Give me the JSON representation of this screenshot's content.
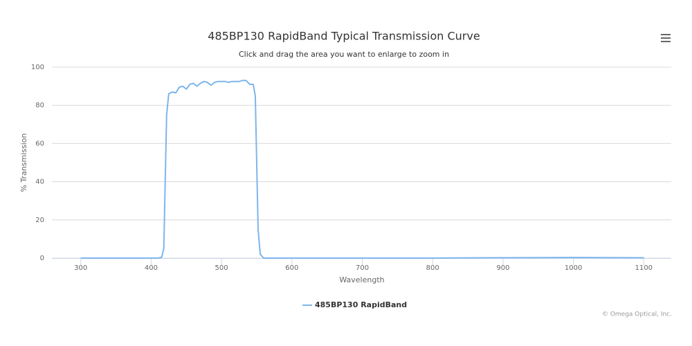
{
  "chart_data": {
    "type": "line",
    "title": "485BP130 RapidBand Typical Transmission Curve",
    "subtitle": "Click and drag the area you want to enlarge to zoom in",
    "x_label": "Wavelength",
    "y_label": "% Transmission",
    "credits": "© Omega Optical, Inc.",
    "xlim": [
      259,
      1139
    ],
    "ylim": [
      0,
      100
    ],
    "xticks": [
      300,
      400,
      500,
      600,
      700,
      800,
      900,
      1000,
      1100
    ],
    "yticks": [
      0,
      20,
      40,
      60,
      80,
      100
    ],
    "grid": true,
    "legend": "bottom",
    "x": [
      300,
      410,
      415,
      418,
      420,
      422,
      425,
      430,
      435,
      440,
      445,
      450,
      455,
      460,
      465,
      470,
      475,
      480,
      485,
      490,
      495,
      500,
      505,
      510,
      515,
      520,
      525,
      530,
      535,
      540,
      545,
      548,
      550,
      552,
      555,
      560,
      600,
      700,
      800,
      880,
      1000,
      1100
    ],
    "series": [
      {
        "name": "485BP130 RapidBand",
        "color": "#7cb5ec",
        "values": [
          0,
          0,
          0.5,
          5,
          40,
          75,
          86,
          87,
          86.5,
          89.5,
          90,
          88.5,
          91,
          91.5,
          90,
          91.5,
          92.5,
          92,
          90.5,
          92,
          92.5,
          92.5,
          92.5,
          92,
          92.5,
          92.5,
          92.5,
          93,
          93,
          91,
          91,
          85,
          50,
          15,
          2,
          0,
          0,
          0,
          0,
          0.2,
          0.3,
          0.2
        ]
      }
    ]
  }
}
